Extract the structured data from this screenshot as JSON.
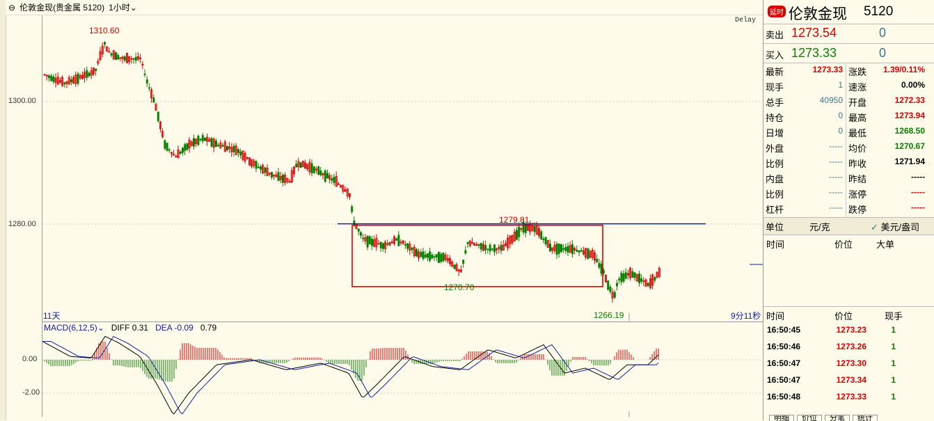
{
  "toolbar": {
    "title": "伦敦金现(贵金属 5120)",
    "period": "1小时",
    "delay": "Delay"
  },
  "chart": {
    "y_ticks": [
      "1300.00",
      "1280.00"
    ],
    "high_label": "1310.60",
    "box_top_label": "1279.81",
    "box_bottom_label": "1270.70",
    "low_label": "1266.19",
    "left_bottom": "11天",
    "right_bottom": "9分11秒",
    "up_color": "#d40000",
    "down_color": "#088000",
    "box_color": "#e00000",
    "resistance_color": "#1020a0"
  },
  "macd": {
    "label": "MACD(6,12,5)",
    "diff": "DIFF 0.31",
    "dea": "DEA -0.09",
    "macd_val": "0.79",
    "y_ticks": [
      "0.00",
      "-2.00"
    ]
  },
  "panel": {
    "badge": "延时",
    "name": "伦敦金现",
    "code": "5120",
    "sell_label": "卖出",
    "sell_price": "1273.54",
    "sell_qty": "0",
    "buy_label": "买入",
    "buy_price": "1273.33",
    "buy_qty": "0",
    "stats_left": [
      {
        "label": "最新",
        "value": "1273.33",
        "color": "red"
      },
      {
        "label": "现手",
        "value": "1",
        "color": "teal"
      },
      {
        "label": "总手",
        "value": "40950",
        "color": "teal"
      },
      {
        "label": "持仓",
        "value": "0",
        "color": "teal"
      },
      {
        "label": "日增",
        "value": "0",
        "color": "teal"
      },
      {
        "label": "外盘",
        "value": "-----",
        "color": "teal"
      },
      {
        "label": "比例",
        "value": "-----",
        "color": "teal"
      },
      {
        "label": "内盘",
        "value": "-----",
        "color": "teal"
      },
      {
        "label": "比例",
        "value": "-----",
        "color": "teal"
      },
      {
        "label": "杠杆",
        "value": "-----",
        "color": "teal"
      }
    ],
    "stats_right": [
      {
        "label": "涨跌",
        "value": "1.39/0.11%",
        "color": "red"
      },
      {
        "label": "速涨",
        "value": "0.00%",
        "color": "dark"
      },
      {
        "label": "开盘",
        "value": "1272.33",
        "color": "red"
      },
      {
        "label": "最高",
        "value": "1273.94",
        "color": "red"
      },
      {
        "label": "最低",
        "value": "1268.50",
        "color": "green"
      },
      {
        "label": "均价",
        "value": "1270.67",
        "color": "green"
      },
      {
        "label": "昨收",
        "value": "1271.94",
        "color": "dark"
      },
      {
        "label": "昨结",
        "value": "-----",
        "color": "dark"
      },
      {
        "label": "涨停",
        "value": "-----",
        "color": "red"
      },
      {
        "label": "跌停",
        "value": "-----",
        "color": "red"
      }
    ],
    "unit_label": "单位",
    "unit_value": "元/克",
    "unit_option": "美元/盎司",
    "big_headers": [
      "时间",
      "价位",
      "大单"
    ],
    "tick_headers": [
      "时间",
      "价位",
      "现手"
    ],
    "ticks": [
      {
        "time": "16:50:45",
        "price": "1273.23",
        "qty": "1"
      },
      {
        "time": "16:50:46",
        "price": "1273.26",
        "qty": "1"
      },
      {
        "time": "16:50:47",
        "price": "1273.30",
        "qty": "1"
      },
      {
        "time": "16:50:47",
        "price": "1273.34",
        "qty": "1"
      },
      {
        "time": "16:50:48",
        "price": "1273.33",
        "qty": "1"
      }
    ],
    "bottom_tabs": [
      "明细",
      "价位",
      "分笔",
      "统计"
    ]
  }
}
